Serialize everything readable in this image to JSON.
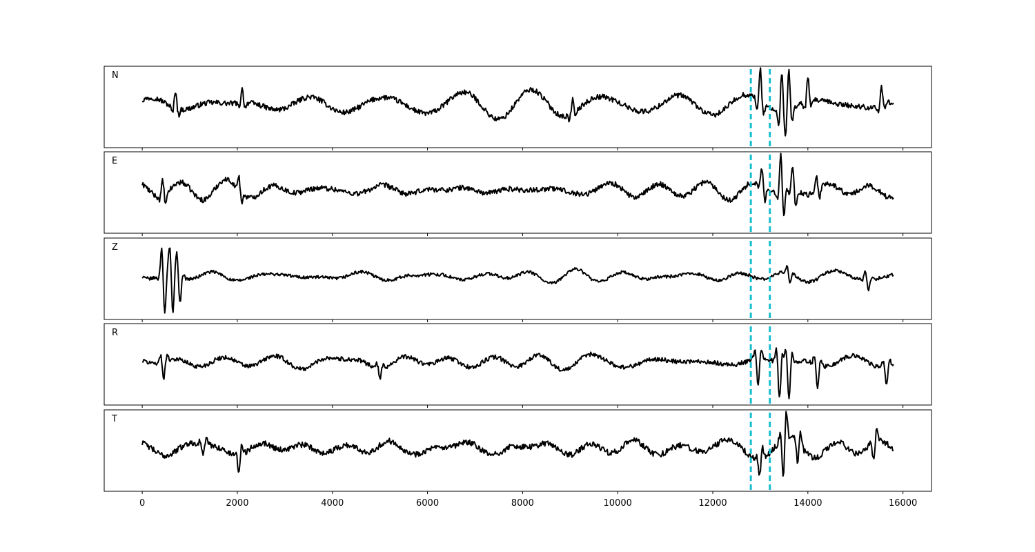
{
  "chart_data": {
    "type": "line",
    "title": "",
    "xlabel": "",
    "ylabel": "",
    "xlim": [
      -800,
      16600
    ],
    "x_ticks": [
      0,
      2000,
      4000,
      6000,
      8000,
      10000,
      12000,
      14000,
      16000
    ],
    "x_tick_labels": [
      "0",
      "2000",
      "4000",
      "6000",
      "8000",
      "10000",
      "12000",
      "14000",
      "16000"
    ],
    "x_range": [
      0,
      15800
    ],
    "grid": false,
    "legend": "none",
    "trace_color": "#000000",
    "vlines": {
      "x": [
        12800,
        13200
      ],
      "color": "#17becf",
      "style": "dashed"
    },
    "panels": [
      {
        "label": "N",
        "noise_level": 0.22,
        "events": [
          {
            "x": 700,
            "amplitude": 0.45
          },
          {
            "x": 2100,
            "amplitude": 0.35
          },
          {
            "x": 9050,
            "amplitude": 0.35
          },
          {
            "x": 13000,
            "amplitude": 0.8
          },
          {
            "x": 13450,
            "amplitude": 1.0
          },
          {
            "x": 13600,
            "amplitude": 1.0
          },
          {
            "x": 14000,
            "amplitude": 0.6
          },
          {
            "x": 15550,
            "amplitude": 0.45
          }
        ]
      },
      {
        "label": "E",
        "noise_level": 0.2,
        "events": [
          {
            "x": 450,
            "amplitude": 0.4
          },
          {
            "x": 2050,
            "amplitude": 0.35
          },
          {
            "x": 13050,
            "amplitude": 0.5
          },
          {
            "x": 13450,
            "amplitude": 1.0
          },
          {
            "x": 13700,
            "amplitude": 0.6
          },
          {
            "x": 14200,
            "amplitude": 0.35
          }
        ]
      },
      {
        "label": "Z",
        "noise_level": 0.12,
        "events": [
          {
            "x": 450,
            "amplitude": 1.0
          },
          {
            "x": 620,
            "amplitude": 0.95
          },
          {
            "x": 770,
            "amplitude": 0.7
          },
          {
            "x": 13600,
            "amplitude": 0.25
          },
          {
            "x": 15250,
            "amplitude": 0.3
          }
        ]
      },
      {
        "label": "R",
        "noise_level": 0.2,
        "events": [
          {
            "x": 450,
            "amplitude": 0.45
          },
          {
            "x": 5000,
            "amplitude": 0.3
          },
          {
            "x": 12950,
            "amplitude": 0.7
          },
          {
            "x": 13400,
            "amplitude": 1.0
          },
          {
            "x": 13600,
            "amplitude": 1.0
          },
          {
            "x": 14200,
            "amplitude": 0.6
          },
          {
            "x": 15650,
            "amplitude": 0.5
          }
        ]
      },
      {
        "label": "T",
        "noise_level": 0.22,
        "events": [
          {
            "x": 1300,
            "amplitude": 0.3
          },
          {
            "x": 2050,
            "amplitude": 0.4
          },
          {
            "x": 13000,
            "amplitude": 0.4
          },
          {
            "x": 13500,
            "amplitude": 1.0
          },
          {
            "x": 13800,
            "amplitude": 0.5
          },
          {
            "x": 15400,
            "amplitude": 0.45
          }
        ]
      }
    ]
  }
}
